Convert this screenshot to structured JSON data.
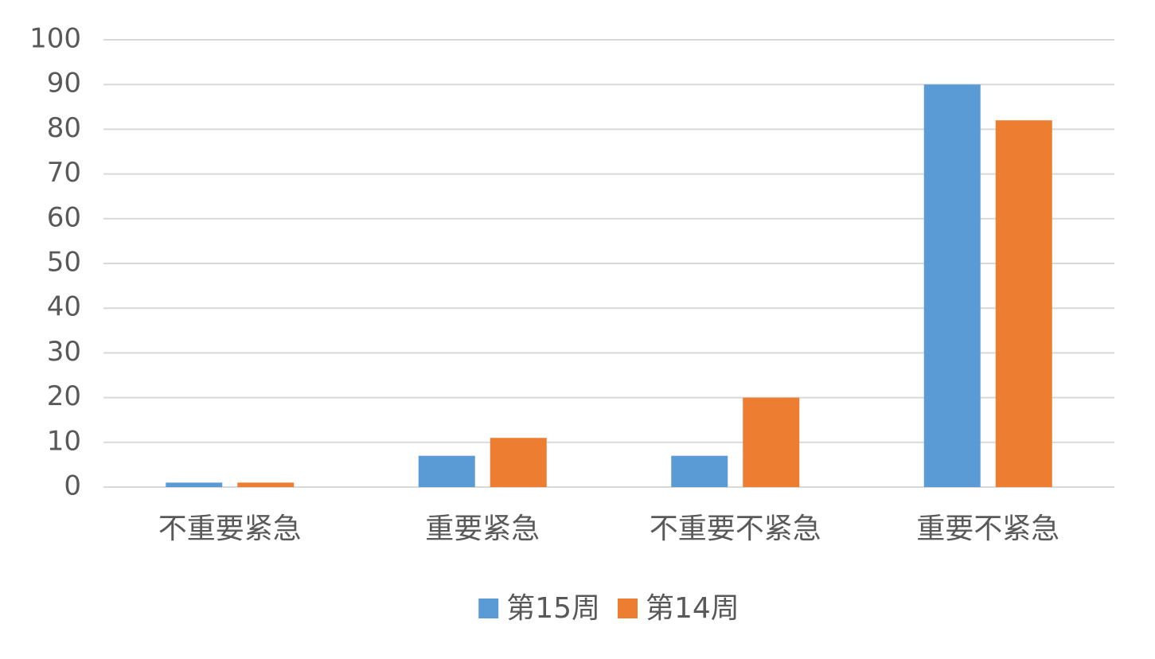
{
  "chart_data": {
    "type": "bar",
    "categories": [
      "不重要紧急",
      "重要紧急",
      "不重要不紧急",
      "重要不紧急"
    ],
    "series": [
      {
        "name": "第15周",
        "color": "#5b9bd5",
        "values": [
          1,
          7,
          7,
          90
        ]
      },
      {
        "name": "第14周",
        "color": "#ed7d31",
        "values": [
          1,
          11,
          20,
          82
        ]
      }
    ],
    "ylim": [
      0,
      100
    ],
    "yticks": [
      0,
      10,
      20,
      30,
      40,
      50,
      60,
      70,
      80,
      90,
      100
    ],
    "grid": true,
    "legend": "bottom"
  }
}
